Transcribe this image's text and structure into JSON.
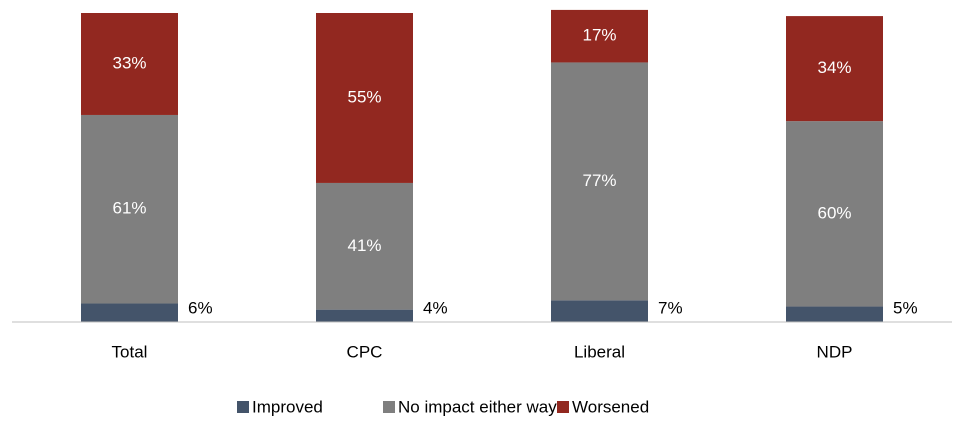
{
  "chart_data": {
    "type": "stacked-bar",
    "categories": [
      "Total",
      "CPC",
      "Liberal",
      "NDP"
    ],
    "series": [
      {
        "name": "Improved",
        "color": "#44546a",
        "values": [
          6,
          4,
          7,
          5
        ],
        "value_labels": [
          "6%",
          "4%",
          "7%",
          "5%"
        ]
      },
      {
        "name": "No impact either way",
        "color": "#7f7f7f",
        "values": [
          61,
          41,
          77,
          60
        ],
        "value_labels": [
          "61%",
          "41%",
          "77%",
          "60%"
        ]
      },
      {
        "name": "Worsened",
        "color": "#922820",
        "values": [
          33,
          55,
          17,
          34
        ],
        "value_labels": [
          "33%",
          "55%",
          "17%",
          "34%"
        ]
      }
    ],
    "legend": "bottom"
  }
}
